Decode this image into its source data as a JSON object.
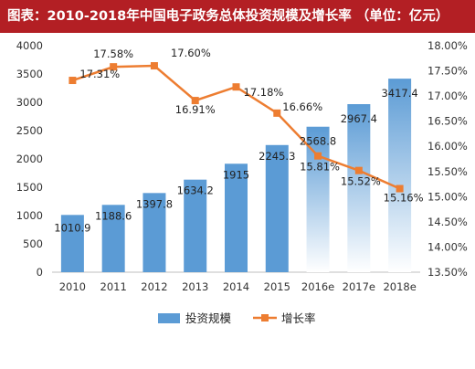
{
  "header": {
    "title": "图表：2010-2018年中国电子政务总体投资规模及增长率 （单位：亿元）"
  },
  "colors": {
    "title_bg": "#b31f24",
    "bar": "#5b9bd5",
    "bar_estimate_top": "#5b9bd5",
    "bar_estimate_bottom": "#ffffff",
    "line": "#ed7d31"
  },
  "chart_data": {
    "type": "bar",
    "categories": [
      "2010",
      "2011",
      "2012",
      "2013",
      "2014",
      "2015",
      "2016e",
      "2017e",
      "2018e"
    ],
    "series": [
      {
        "name": "投资规模",
        "type": "bar",
        "axis": "left",
        "values": [
          1010.9,
          1188.6,
          1397.8,
          1634.2,
          1915,
          2245.3,
          2568.8,
          2967.4,
          3417.4
        ],
        "labels": [
          "1010.9",
          "1188.6",
          "1397.8",
          "1634.2",
          "1915",
          "2245.3",
          "2568.8",
          "2967.4",
          "3417.4"
        ]
      },
      {
        "name": "增长率",
        "type": "line",
        "axis": "right",
        "values": [
          17.31,
          17.58,
          17.6,
          16.91,
          17.18,
          16.66,
          15.81,
          15.52,
          15.16
        ],
        "labels": [
          "17.31%",
          "17.58%",
          "17.60%",
          "16.91%",
          "17.18%",
          "16.66%",
          "15.81%",
          "15.52%",
          "15.16%"
        ]
      }
    ],
    "estimated_categories": [
      "2016e",
      "2017e",
      "2018e"
    ],
    "y_left": {
      "min": 0,
      "max": 4000,
      "step": 500,
      "ticks": [
        "0",
        "500",
        "1000",
        "1500",
        "2000",
        "2500",
        "3000",
        "3500",
        "4000"
      ]
    },
    "y_right": {
      "min": 13.5,
      "max": 18.0,
      "step": 0.5,
      "ticks": [
        "13.50%",
        "14.00%",
        "14.50%",
        "15.00%",
        "15.50%",
        "16.00%",
        "16.50%",
        "17.00%",
        "17.50%",
        "18.00%"
      ]
    },
    "grid": false,
    "legend_position": "bottom-center"
  }
}
